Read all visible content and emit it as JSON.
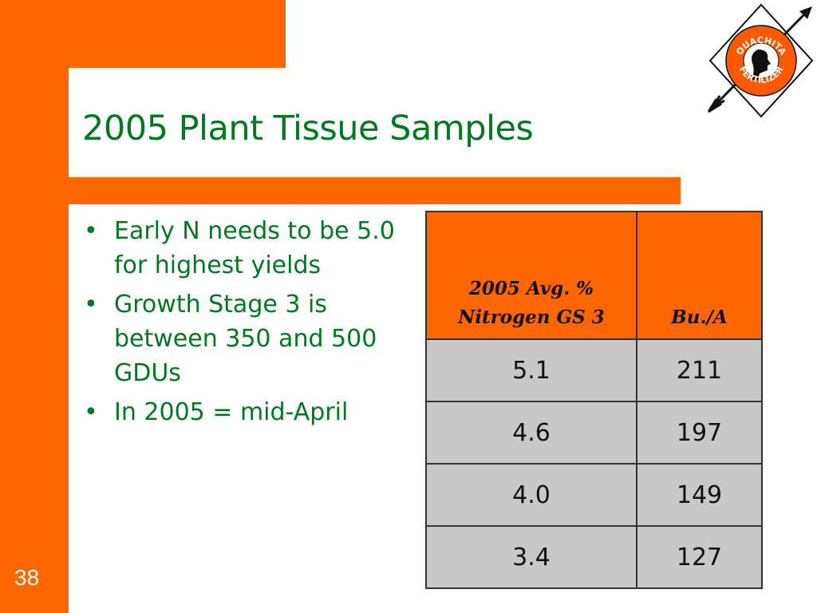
{
  "slide": {
    "title": "2005 Plant Tissue Samples",
    "page_number": "38",
    "bullets": [
      "Early N needs to be 5.0 for highest yields",
      "Growth Stage 3 is between 350 and 500 GDUs",
      "In 2005 = mid-April"
    ]
  },
  "table": {
    "headers": [
      "2005 Avg. % Nitrogen GS 3",
      "Bu./A"
    ],
    "rows": [
      [
        "5.1",
        "211"
      ],
      [
        "4.6",
        "197"
      ],
      [
        "4.0",
        "149"
      ],
      [
        "3.4",
        "127"
      ]
    ]
  },
  "logo": {
    "name": "ouachita-fertilizer-logo",
    "text_top": "OUACHITA",
    "text_bottom": "FERTILIZER"
  },
  "colors": {
    "accent": "#ff6600",
    "title_green": "#007a1e",
    "table_fill": "#c8c8c8"
  }
}
